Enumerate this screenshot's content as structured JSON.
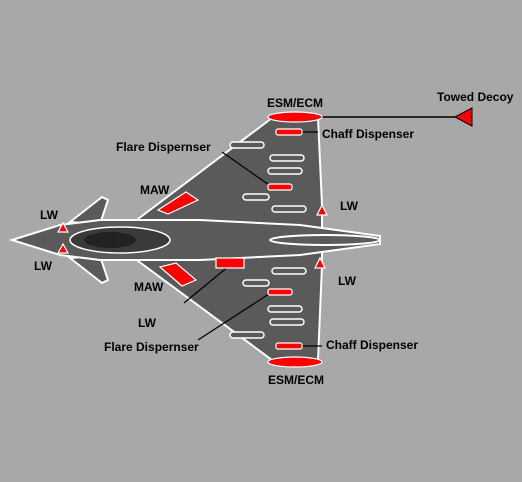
{
  "labels": {
    "towed_decoy": "Towed Decoy",
    "esm_ecm_top": "ESM/ECM",
    "chaff_top": "Chaff Dispenser",
    "flare_top": "Flare Dispernser",
    "maw_top": "MAW",
    "lw_nose_top": "LW",
    "lw_nose_bottom": "LW",
    "lw_wing_top": "LW",
    "lw_wing_bottom": "LW",
    "maw_bottom": "MAW",
    "lw_fuselage": "LW",
    "flare_bottom": "Flare Dispernser",
    "chaff_bottom": "Chaff Dispenser",
    "esm_ecm_bottom": "ESM/ECM"
  },
  "colors": {
    "background": "#a8a8a8",
    "airframe": "#5a5a5a",
    "outline": "#ffffff",
    "sensor": "#ff0000",
    "leader": "#000000"
  }
}
